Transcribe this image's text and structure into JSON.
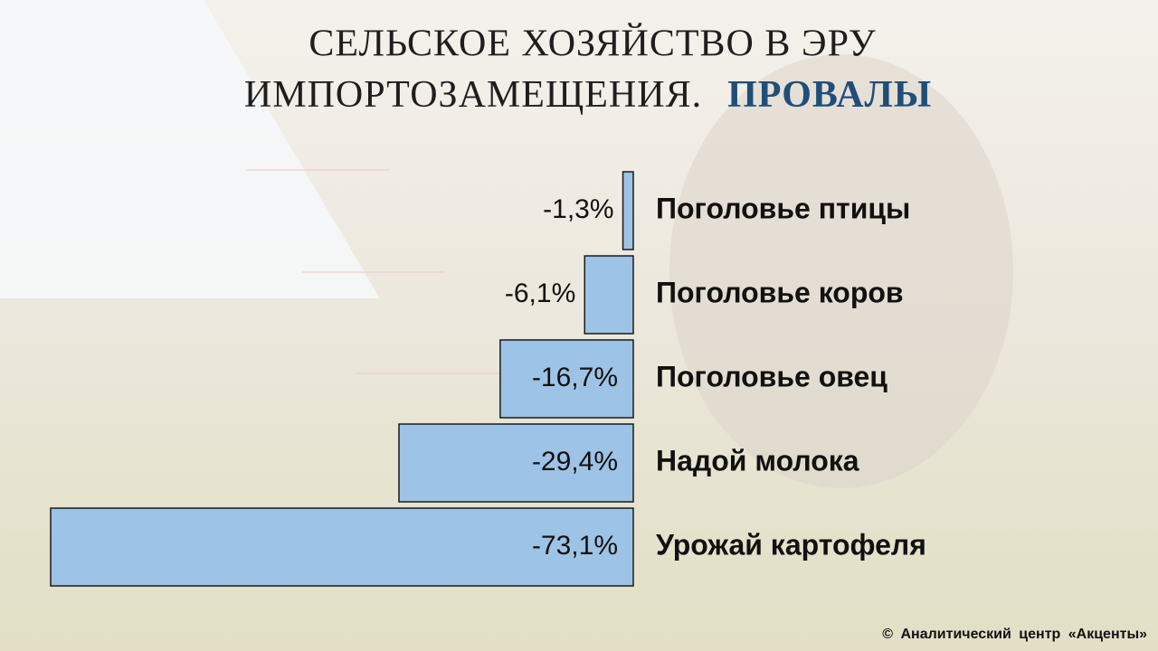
{
  "chart_data": {
    "type": "hbar",
    "title": [
      "СЕЛЬСКОЕ  ХОЗЯЙСТВО  В  ЭРУ",
      "ИМПОРТОЗАМЕЩЕНИЯ."
    ],
    "title_highlight": "ПРОВАЛЫ",
    "categories": [
      "Поголовье птицы",
      "Поголовье коров",
      "Поголовье овец",
      "Надой молока",
      "Урожай картофеля"
    ],
    "values": [
      -1.3,
      -6.1,
      -16.7,
      -29.4,
      -73.1
    ],
    "value_labels": [
      "-1,3%",
      "-6,1%",
      "-16,7%",
      "-29,4%",
      "-73,1%"
    ],
    "color": "#9dc3e6",
    "source": "© Аналитический центр «Акценты»"
  }
}
